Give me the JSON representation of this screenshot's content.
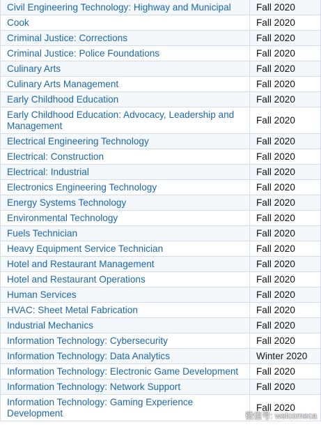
{
  "programs": [
    {
      "name": "Civil Engineering Technology: Highway and Municipal",
      "term": "Fall 2020"
    },
    {
      "name": "Cook",
      "term": "Fall 2020"
    },
    {
      "name": "Criminal Justice: Corrections",
      "term": "Fall 2020"
    },
    {
      "name": "Criminal Justice: Police Foundations",
      "term": "Fall 2020"
    },
    {
      "name": "Culinary Arts",
      "term": "Fall 2020"
    },
    {
      "name": "Culinary Arts Management",
      "term": "Fall 2020"
    },
    {
      "name": "Early Childhood Education",
      "term": "Fall 2020"
    },
    {
      "name": "Early Childhood Education: Advocacy, Leadership and Management",
      "term": "Fall 2020"
    },
    {
      "name": "Electrical Engineering Technology",
      "term": "Fall 2020"
    },
    {
      "name": "Electrical: Construction",
      "term": "Fall 2020"
    },
    {
      "name": "Electrical: Industrial",
      "term": "Fall 2020"
    },
    {
      "name": "Electronics Engineering Technology",
      "term": "Fall 2020"
    },
    {
      "name": "Energy Systems Technology",
      "term": "Fall 2020"
    },
    {
      "name": "Environmental Technology",
      "term": "Fall 2020"
    },
    {
      "name": "Fuels Technician",
      "term": "Fall 2020"
    },
    {
      "name": "Heavy Equipment Service Technician",
      "term": "Fall 2020"
    },
    {
      "name": "Hotel and Restaurant Management",
      "term": "Fall 2020"
    },
    {
      "name": "Hotel and Restaurant Operations",
      "term": "Fall 2020"
    },
    {
      "name": "Human Services",
      "term": "Fall 2020"
    },
    {
      "name": "HVAC: Sheet Metal Fabrication",
      "term": "Fall 2020"
    },
    {
      "name": "Industrial Mechanics",
      "term": "Fall 2020"
    },
    {
      "name": "Information Technology: Cybersecurity",
      "term": "Fall 2020"
    },
    {
      "name": "Information Technology: Data Analytics",
      "term": "Winter 2020"
    },
    {
      "name": "Information Technology: Electronic Game Development",
      "term": "Fall 2020"
    },
    {
      "name": "Information Technology: Network Support",
      "term": "Fall 2020"
    },
    {
      "name": "Information Technology: Gaming Experience Development",
      "term": "Fall 2020"
    }
  ],
  "watermark": {
    "text": "微信号: welcomeca",
    "icon": "wechat-icon"
  },
  "colors": {
    "link": "#1a68ad",
    "border": "#d4dde7",
    "row_alt": "#f4f8fb",
    "term_text": "#111111"
  }
}
